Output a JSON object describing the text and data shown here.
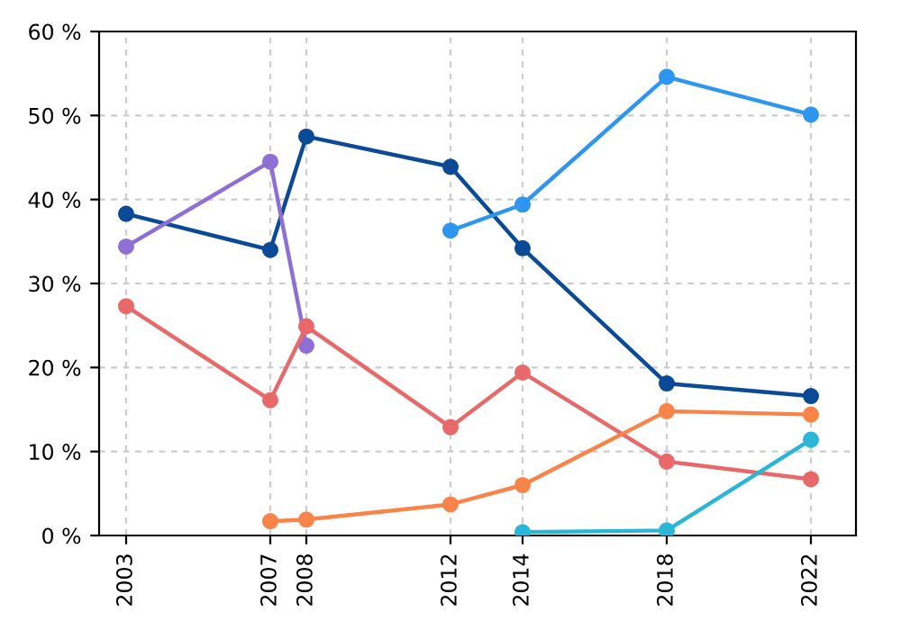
{
  "chart_data": {
    "type": "line",
    "marker": "circle",
    "line_style": "solid",
    "grid": true,
    "xlim": [
      2002.25,
      2023.25
    ],
    "xticks": [
      2003,
      2007,
      2008,
      2012,
      2014,
      2018,
      2022
    ],
    "ylim": [
      0,
      60
    ],
    "yticks": [
      {
        "value": 0,
        "label": "0 %"
      },
      {
        "value": 10,
        "label": "10 %"
      },
      {
        "value": 20,
        "label": "20 %"
      },
      {
        "value": 30,
        "label": "30 %"
      },
      {
        "value": 40,
        "label": "40 %"
      },
      {
        "value": 50,
        "label": "50 %"
      },
      {
        "value": 60,
        "label": "60 %"
      }
    ],
    "series": [
      {
        "color": "#0b4a96",
        "x": [
          2003,
          2007,
          2008,
          2012,
          2014,
          2018,
          2022
        ],
        "values": [
          38.3,
          34.0,
          47.5,
          43.9,
          34.2,
          18.1,
          16.6
        ]
      },
      {
        "color": "#8e6fd4",
        "x": [
          2003,
          2007,
          2008
        ],
        "values": [
          34.4,
          44.5,
          22.6
        ]
      },
      {
        "color": "#e8696a",
        "x": [
          2003,
          2007,
          2008,
          2012,
          2014,
          2018,
          2022
        ],
        "values": [
          27.3,
          16.1,
          24.9,
          12.9,
          19.4,
          8.8,
          6.7
        ]
      },
      {
        "color": "#2f96f0",
        "x": [
          2012,
          2014,
          2018,
          2022
        ],
        "values": [
          36.3,
          39.4,
          54.6,
          50.1
        ]
      },
      {
        "color": "#f9844a",
        "x": [
          2007,
          2008,
          2012,
          2014,
          2018,
          2022
        ],
        "values": [
          1.7,
          1.9,
          3.7,
          6.0,
          14.8,
          14.4
        ]
      },
      {
        "color": "#2bb6d8",
        "x": [
          2014,
          2018,
          2022
        ],
        "values": [
          0.4,
          0.6,
          11.4
        ]
      }
    ]
  }
}
